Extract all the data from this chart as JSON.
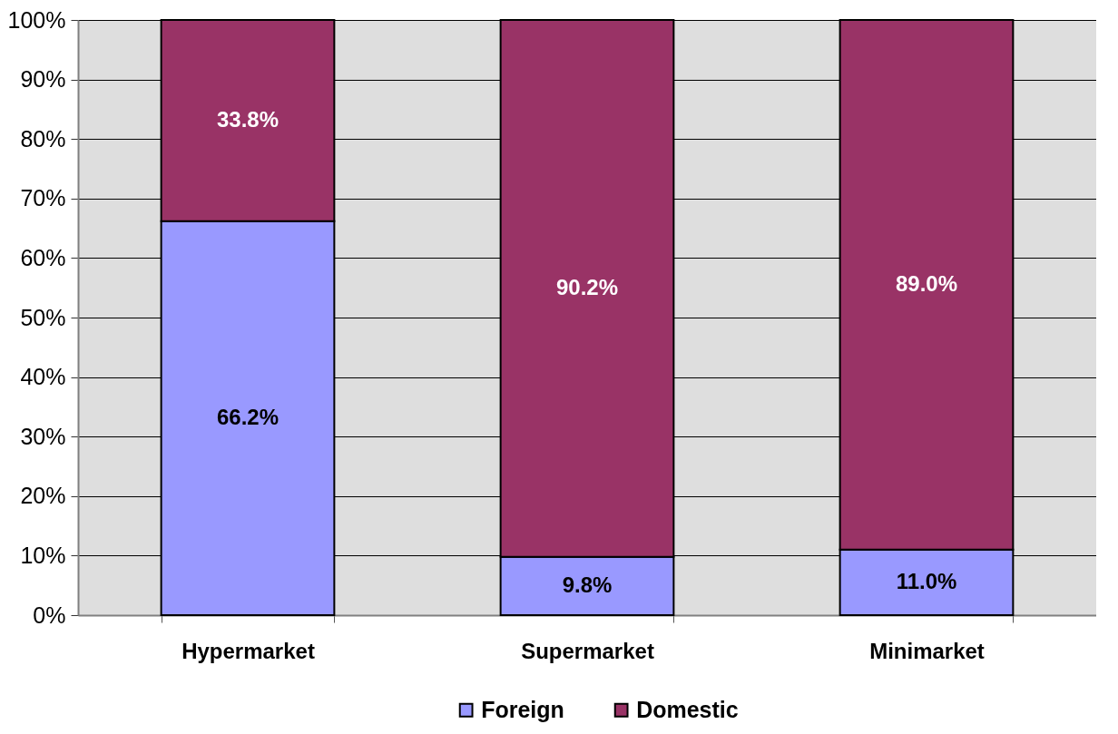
{
  "chart_data": {
    "type": "bar",
    "stacked": true,
    "categories": [
      "Hypermarket",
      "Supermarket",
      "Minimarket"
    ],
    "series": [
      {
        "name": "Foreign",
        "color": "#9999ff",
        "values": [
          66.2,
          9.8,
          11.0
        ],
        "value_labels": [
          "66.2%",
          "9.8%",
          "11.0%"
        ]
      },
      {
        "name": "Domestic",
        "color": "#993366",
        "values": [
          33.8,
          90.2,
          89.0
        ],
        "value_labels": [
          "33.8%",
          "90.2%",
          "89.0%"
        ]
      }
    ],
    "ylim": [
      0,
      100
    ],
    "yticks": [
      {
        "value": 0,
        "label": "0%"
      },
      {
        "value": 10,
        "label": "10%"
      },
      {
        "value": 20,
        "label": "20%"
      },
      {
        "value": 30,
        "label": "30%"
      },
      {
        "value": 40,
        "label": "40%"
      },
      {
        "value": 50,
        "label": "50%"
      },
      {
        "value": 60,
        "label": "60%"
      },
      {
        "value": 70,
        "label": "70%"
      },
      {
        "value": 80,
        "label": "80%"
      },
      {
        "value": 90,
        "label": "90%"
      },
      {
        "value": 100,
        "label": "100%"
      }
    ],
    "grid": "y",
    "legend": "bottom"
  }
}
